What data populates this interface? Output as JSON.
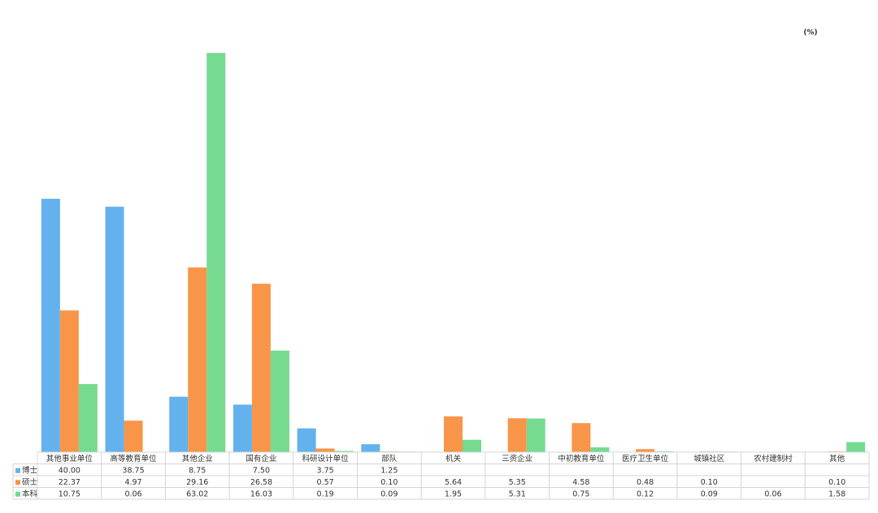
{
  "chart_data": {
    "type": "bar",
    "unit": "(%)",
    "categories": [
      "其他事业单位",
      "高等教育单位",
      "其他企业",
      "国有企业",
      "科研设计单位",
      "部队",
      "机关",
      "三资企业",
      "中初教育单位",
      "医疗卫生单位",
      "城镇社区",
      "农村建制村",
      "其他"
    ],
    "series": [
      {
        "name": "博士",
        "color": "#63b2ee",
        "values": [
          40.0,
          38.75,
          8.75,
          7.5,
          3.75,
          1.25,
          null,
          null,
          null,
          null,
          null,
          null,
          null
        ],
        "value_labels": [
          "40.00",
          "38.75",
          "8.75",
          "7.50",
          "3.75",
          "1.25",
          null,
          null,
          null,
          null,
          null,
          null,
          null
        ]
      },
      {
        "name": "硕士",
        "color": "#f89548",
        "values": [
          22.37,
          4.97,
          29.16,
          26.58,
          0.57,
          0.1,
          5.64,
          5.35,
          4.58,
          0.48,
          0.1,
          null,
          0.1
        ],
        "value_labels": [
          "22.37",
          "4.97",
          "29.16",
          "26.58",
          "0.57",
          "0.10",
          "5.64",
          "5.35",
          "4.58",
          "0.48",
          "0.10",
          null,
          "0.10"
        ]
      },
      {
        "name": "本科",
        "color": "#76da91",
        "values": [
          10.75,
          0.06,
          63.02,
          16.03,
          0.19,
          0.09,
          1.95,
          5.31,
          0.75,
          0.12,
          0.09,
          0.06,
          1.58
        ],
        "value_labels": [
          "10.75",
          "0.06",
          "63.02",
          "16.03",
          "0.19",
          "0.09",
          "1.95",
          "5.31",
          "0.75",
          "0.12",
          "0.09",
          "0.06",
          "1.58"
        ]
      }
    ],
    "ylim": [
      0,
      66
    ]
  }
}
